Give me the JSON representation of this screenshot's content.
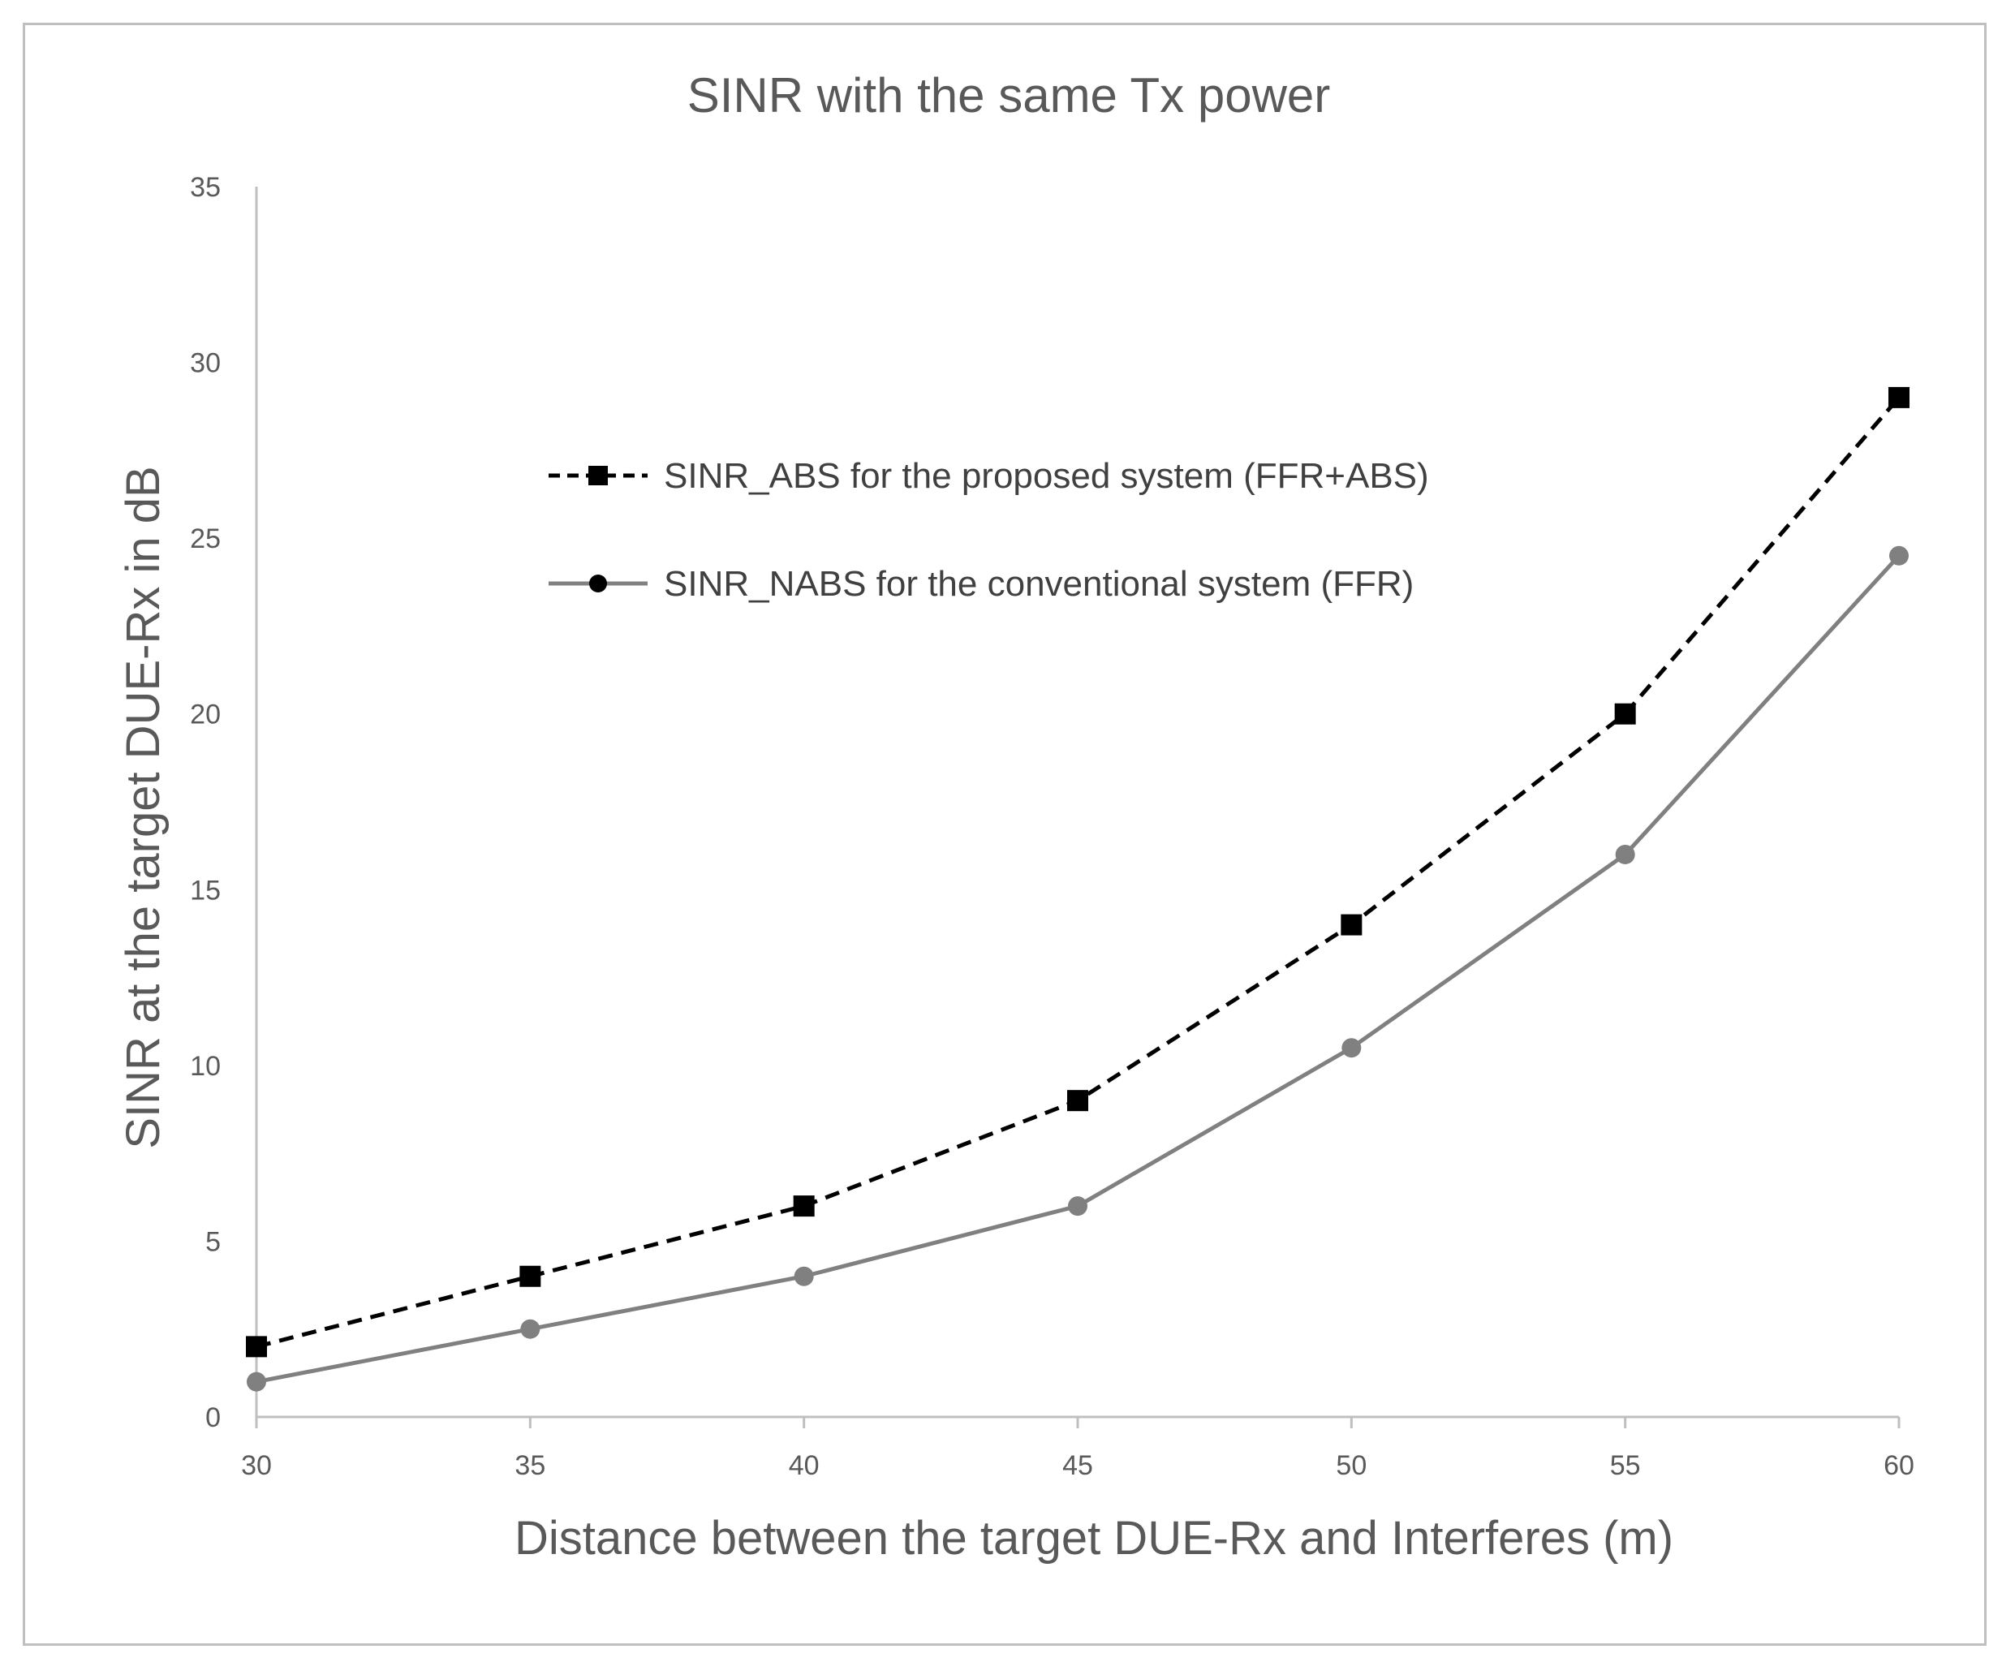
{
  "chart_data": {
    "type": "line",
    "title": "SINR with the same Tx power",
    "xlabel": "Distance between the target DUE-Rx and Interferes (m)",
    "ylabel": "SINR at the target DUE-Rx in dB",
    "x": [
      30,
      35,
      40,
      45,
      50,
      55,
      60
    ],
    "xlim": [
      30,
      60
    ],
    "ylim": [
      0,
      35
    ],
    "yticks": [
      0,
      5,
      10,
      15,
      20,
      25,
      30,
      35
    ],
    "xticks": [
      30,
      35,
      40,
      45,
      50,
      55,
      60
    ],
    "grid": false,
    "legend_position": "top-center",
    "series": [
      {
        "name": "SINR_ABS for the proposed system (FFR+ABS)",
        "values": [
          2,
          4,
          6,
          9,
          14,
          20,
          29
        ],
        "color": "#000000",
        "line": "dashed",
        "marker": "square"
      },
      {
        "name": "SINR_NABS for the conventional system (FFR)",
        "values": [
          1,
          2.5,
          4,
          6,
          10.5,
          16,
          24.5
        ],
        "color": "#808080",
        "line": "solid",
        "marker": "circle"
      }
    ]
  }
}
